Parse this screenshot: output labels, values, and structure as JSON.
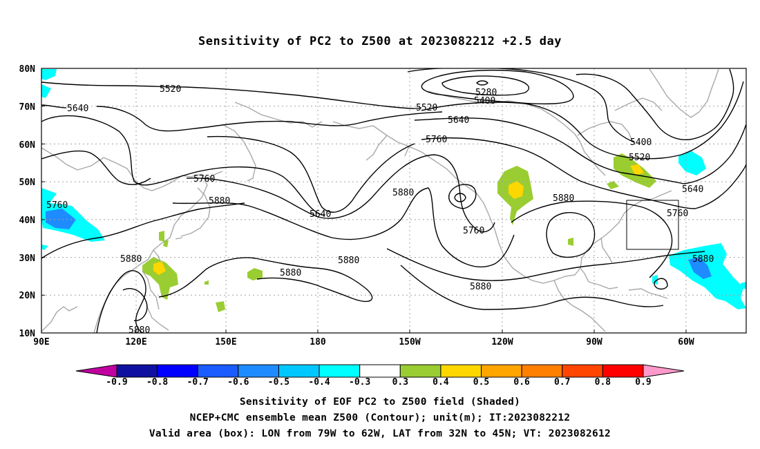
{
  "title": "Sensitivity of PC2 to Z500 at 2023082212 +2.5 day",
  "axes": {
    "lat_labels": [
      "80N",
      "70N",
      "60N",
      "50N",
      "40N",
      "30N",
      "20N",
      "10N"
    ],
    "lon_labels": [
      "90E",
      "120E",
      "150E",
      "180",
      "150W",
      "120W",
      "90W",
      "60W"
    ]
  },
  "contour_labels": {
    "c5520a": "5520",
    "c5640a": "5640",
    "c5280": "5280",
    "c5400a": "5400",
    "c5520b": "5520",
    "c5640b": "5640",
    "c5760a": "5760",
    "c5400b": "5400",
    "c5520c": "5520",
    "c5640c": "5640",
    "c5760b": "5760",
    "c5880a": "5880",
    "c5760c": "5760",
    "c5640d": "5640",
    "c5880b": "5880",
    "c5760d": "5760",
    "c5880c": "5880",
    "c5760e": "5760",
    "c5880d": "5880",
    "c5880e": "5880",
    "c5880f": "5880",
    "c5880g": "5880",
    "c5880h": "5880"
  },
  "colorbar": {
    "labels": [
      "-0.9",
      "-0.8",
      "-0.7",
      "-0.6",
      "-0.5",
      "-0.4",
      "-0.3",
      "0.3",
      "0.4",
      "0.5",
      "0.6",
      "0.7",
      "0.8",
      "0.9"
    ],
    "colors": [
      "#1010a0",
      "#0000ff",
      "#1a5cff",
      "#1e8cff",
      "#00c8ff",
      "#00ffff",
      "#ffffff",
      "#9acd32",
      "#ffd700",
      "#ffa500",
      "#ff7f00",
      "#ff4500",
      "#ff0000"
    ],
    "end_low": "#c000a0",
    "end_high": "#ff99cc"
  },
  "colors": {
    "contour": "#000000",
    "coast": "#a8a8a8",
    "grid": "#a0a0a0"
  },
  "caption": {
    "line1": "Sensitivity of EOF PC2 to Z500 field (Shaded)",
    "line2": "NCEP+CMC ensemble mean Z500 (Contour); unit(m); IT:2023082212",
    "line3": "Valid area (box): LON from 79W to 62W, LAT from 32N to 45N; VT: 2023082612"
  }
}
